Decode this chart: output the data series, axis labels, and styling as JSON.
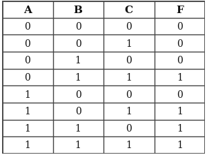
{
  "headers": [
    "A",
    "B",
    "C",
    "F"
  ],
  "rows": [
    [
      "0",
      "0",
      "0",
      "0"
    ],
    [
      "0",
      "0",
      "1",
      "0"
    ],
    [
      "0",
      "1",
      "0",
      "0"
    ],
    [
      "0",
      "1",
      "1",
      "1"
    ],
    [
      "1",
      "0",
      "0",
      "0"
    ],
    [
      "1",
      "0",
      "1",
      "1"
    ],
    [
      "1",
      "1",
      "0",
      "1"
    ],
    [
      "1",
      "1",
      "1",
      "1"
    ]
  ],
  "header_fontsize": 11,
  "cell_fontsize": 10,
  "header_fontweight": "bold",
  "line_color": "#444444",
  "text_color": "#111111",
  "bg_color": "#ffffff",
  "outer_lw": 2.0,
  "inner_lw": 1.0,
  "figsize": [
    3.0,
    2.26
  ],
  "dpi": 100
}
